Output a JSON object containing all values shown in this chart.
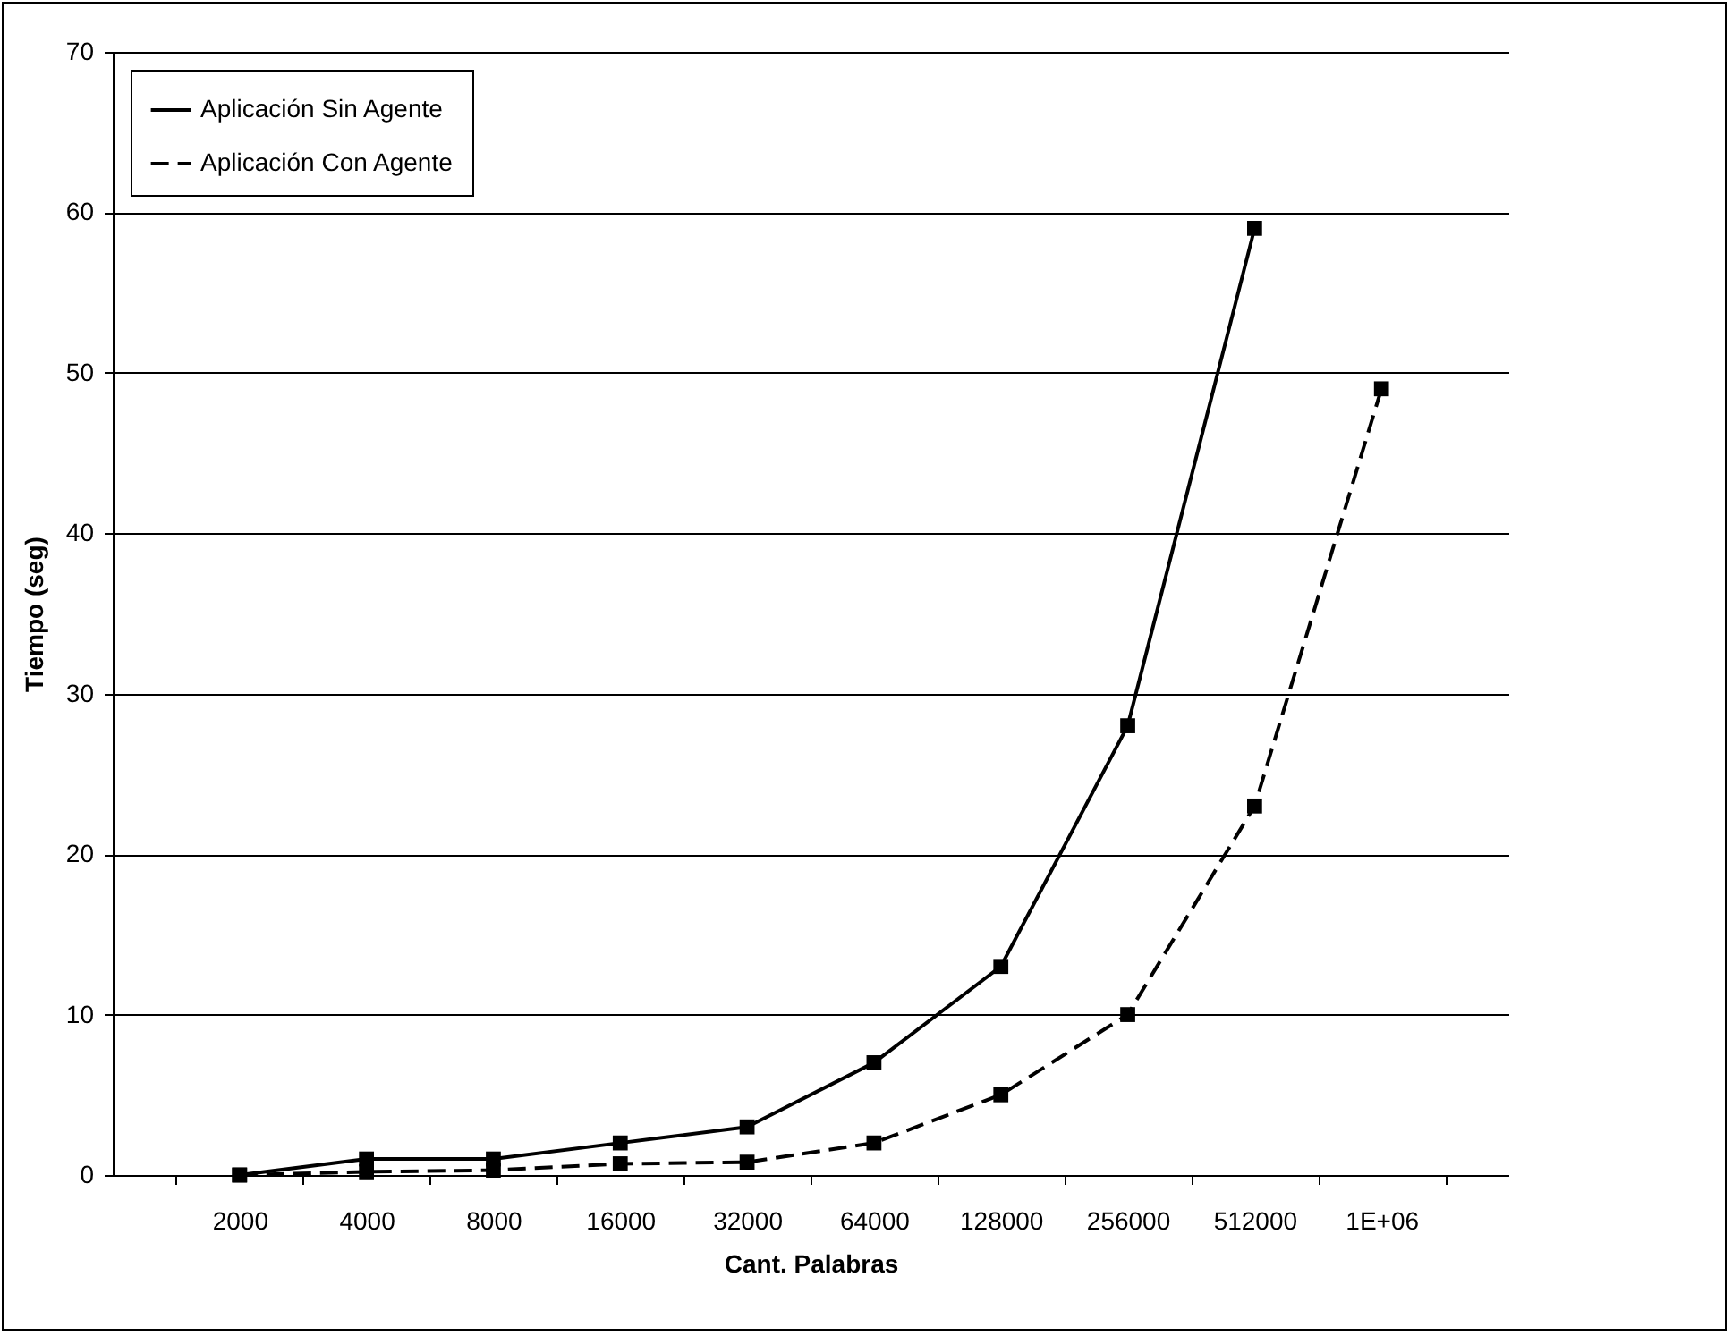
{
  "chart_data": {
    "type": "line",
    "xlabel": "Cant. Palabras",
    "ylabel": "Tiempo (seg)",
    "categories": [
      "2000",
      "4000",
      "8000",
      "16000",
      "32000",
      "64000",
      "128000",
      "256000",
      "512000",
      "1E+06"
    ],
    "series": [
      {
        "name": "Aplicación Sin Agente",
        "color": "#000000",
        "line_style": "solid",
        "values": [
          0,
          1,
          1,
          2,
          3,
          7,
          13,
          28,
          59,
          null
        ]
      },
      {
        "name": "Aplicación Con Agente",
        "color": "#000000",
        "line_style": "dashed",
        "values": [
          0,
          0.2,
          0.3,
          0.7,
          0.8,
          2,
          5,
          10,
          23,
          49
        ]
      }
    ],
    "ylim": [
      0,
      70
    ],
    "yticks": [
      0,
      10,
      20,
      30,
      40,
      50,
      60,
      70
    ],
    "grid": "y",
    "legend": "top left",
    "marker": "square"
  }
}
